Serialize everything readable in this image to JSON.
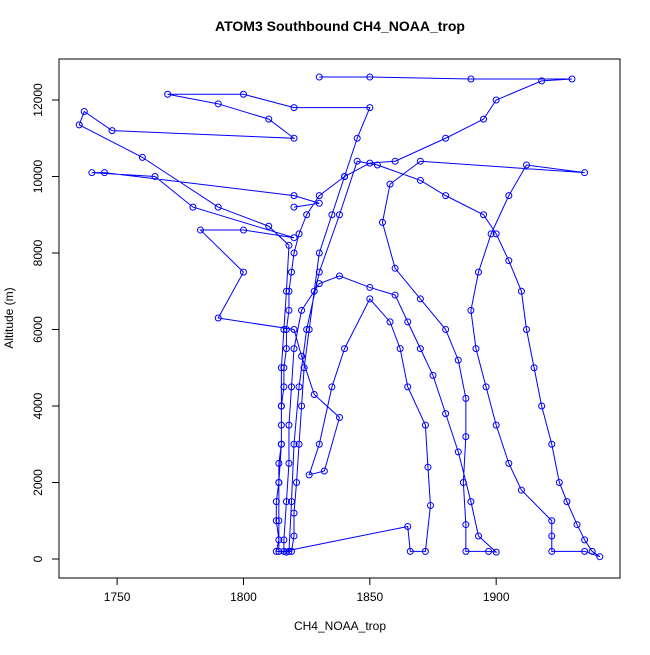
{
  "chart_data": {
    "type": "line",
    "title": "ATOM3 Southbound CH4_NOAA_trop",
    "x_label": "CH4_NOAA_trop",
    "y_label": "Altitude (m)",
    "color": "#0000ff",
    "markers": "open-circle",
    "grid": false,
    "xlim": [
      1727,
      1949
    ],
    "ylim": [
      -497,
      13072
    ],
    "xticks": [
      1750,
      1800,
      1850,
      1900
    ],
    "yticks": [
      0,
      2000,
      4000,
      6000,
      8000,
      10000,
      12000
    ],
    "x": [
      1830,
      1850,
      1890,
      1930,
      1918,
      1900,
      1895,
      1880,
      1860,
      1850,
      1840,
      1830,
      1825,
      1822,
      1820,
      1819,
      1818,
      1818,
      1817,
      1817,
      1816,
      1816,
      1815,
      1815,
      1815,
      1814,
      1814,
      1813,
      1813,
      1814,
      1813,
      1817,
      1819,
      1820,
      1820,
      1821,
      1822,
      1823,
      1824,
      1826,
      1828,
      1830,
      1835,
      1840,
      1845,
      1850,
      1820,
      1800,
      1770,
      1790,
      1810,
      1820,
      1748,
      1737,
      1735,
      1760,
      1790,
      1810,
      1818,
      1817,
      1816,
      1815,
      1815,
      1815,
      1814,
      1814,
      1814,
      1818,
      1819,
      1820,
      1822,
      1825,
      1830,
      1838,
      1845,
      1853,
      1870,
      1880,
      1895,
      1900,
      1905,
      1910,
      1912,
      1915,
      1918,
      1922,
      1925,
      1928,
      1932,
      1935,
      1938,
      1941,
      1935,
      1922,
      1922,
      1922,
      1910,
      1905,
      1900,
      1896,
      1892,
      1890,
      1893,
      1898,
      1905,
      1912,
      1935,
      1870,
      1858,
      1855,
      1860,
      1870,
      1880,
      1885,
      1888,
      1888,
      1887,
      1888,
      1888,
      1897,
      1900,
      1893,
      1890,
      1885,
      1880,
      1875,
      1870,
      1865,
      1860,
      1850,
      1838,
      1830,
      1823,
      1820,
      1819,
      1818,
      1818,
      1817,
      1816,
      1816,
      1865,
      1866,
      1872,
      1874,
      1873,
      1872,
      1865,
      1862,
      1858,
      1850,
      1840,
      1835,
      1830,
      1826,
      1832,
      1838,
      1828,
      1823,
      1820,
      1790,
      1800,
      1783,
      1800,
      1820,
      1780,
      1765,
      1740,
      1745,
      1820,
      1830,
      1820
    ],
    "values": [
      12600,
      12600,
      12550,
      12550,
      12500,
      12000,
      11500,
      11000,
      10400,
      10350,
      10000,
      9500,
      9000,
      8500,
      8000,
      7500,
      7000,
      6500,
      6000,
      5500,
      5000,
      4500,
      4000,
      3500,
      3000,
      2500,
      2000,
      1500,
      1000,
      500,
      200,
      180,
      200,
      600,
      1200,
      2000,
      3000,
      4000,
      5000,
      6000,
      7000,
      8000,
      9000,
      10000,
      11000,
      11800,
      11800,
      12150,
      12150,
      11900,
      11500,
      11000,
      11200,
      11700,
      11350,
      10500,
      9200,
      8700,
      8200,
      7000,
      6000,
      5000,
      4000,
      3000,
      2000,
      1000,
      200,
      200,
      1500,
      3000,
      4500,
      6000,
      7500,
      9000,
      10400,
      10300,
      9900,
      9500,
      9000,
      8500,
      7800,
      7000,
      6000,
      5000,
      4000,
      3000,
      2000,
      1500,
      900,
      500,
      200,
      60,
      200,
      200,
      600,
      1000,
      1800,
      2500,
      3500,
      4500,
      5500,
      6500,
      7500,
      8500,
      9500,
      10300,
      10100,
      10400,
      9800,
      8800,
      7600,
      6800,
      6000,
      5200,
      4200,
      3200,
      2000,
      900,
      200,
      200,
      180,
      600,
      1500,
      2800,
      3800,
      4800,
      5500,
      6200,
      6900,
      7100,
      7400,
      7200,
      6500,
      5500,
      4500,
      3500,
      2500,
      1500,
      500,
      200,
      850,
      200,
      200,
      1400,
      2400,
      3500,
      4500,
      5500,
      6200,
      6800,
      5500,
      4500,
      3000,
      2200,
      2300,
      3700,
      4300,
      5300,
      6000,
      6300,
      7500,
      8600,
      8600,
      8400,
      9200,
      10000,
      10100,
      10100,
      9500,
      9300,
      9200
    ]
  }
}
